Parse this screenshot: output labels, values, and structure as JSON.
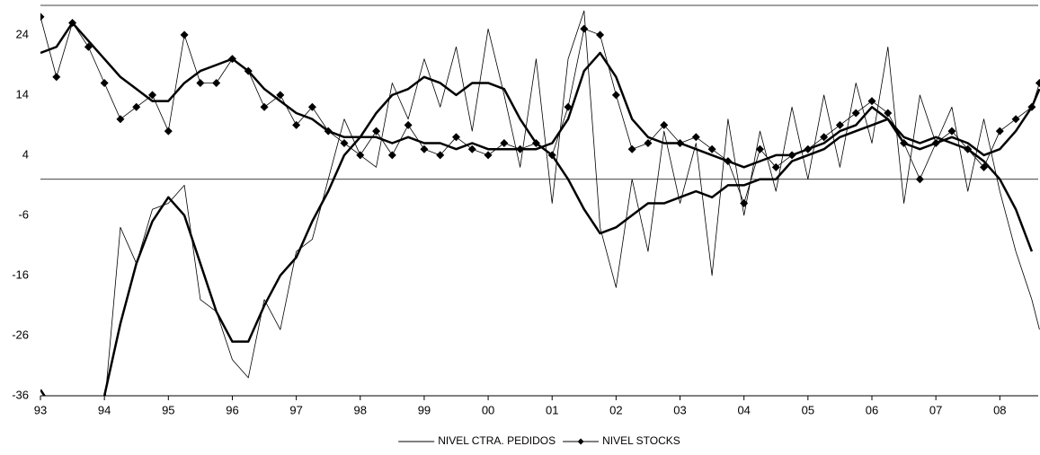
{
  "chart_data": {
    "type": "line",
    "x": [
      1993,
      1993.25,
      1993.5,
      1993.75,
      1994,
      1994.25,
      1994.5,
      1994.75,
      1995,
      1995.25,
      1995.5,
      1995.75,
      1996,
      1996.25,
      1996.5,
      1996.75,
      1997,
      1997.25,
      1997.5,
      1997.75,
      1998,
      1998.25,
      1998.5,
      1998.75,
      1999,
      1999.25,
      1999.5,
      1999.75,
      2000,
      2000.25,
      2000.5,
      2000.75,
      2001,
      2001.25,
      2001.5,
      2001.75,
      2002,
      2002.25,
      2002.5,
      2002.75,
      2003,
      2003.25,
      2003.5,
      2003.75,
      2004,
      2004.25,
      2004.5,
      2004.75,
      2005,
      2005.25,
      2005.5,
      2005.75,
      2006,
      2006.25,
      2006.5,
      2006.75,
      2007,
      2007.25,
      2007.5,
      2007.75,
      2008,
      2008.25,
      2008.5,
      2008.62
    ],
    "series": [
      {
        "name": "NIVEL CTRA. PEDIDOS",
        "color": "#000000",
        "width": 0.8,
        "values": [
          -40,
          -42,
          -42,
          -40,
          -38,
          -8,
          -14,
          -5,
          -4,
          -1,
          -20,
          -22,
          -30,
          -33,
          -20,
          -25,
          -12,
          -10,
          0,
          10,
          4,
          2,
          16,
          10,
          20,
          12,
          22,
          8,
          25,
          14,
          2,
          20,
          -4,
          20,
          28,
          -8,
          -18,
          0,
          -12,
          8,
          -4,
          6,
          -16,
          10,
          -6,
          8,
          -2,
          12,
          0,
          14,
          2,
          16,
          6,
          22,
          -4,
          14,
          6,
          12,
          -2,
          10,
          -2,
          -12,
          -20,
          -25
        ]
      },
      {
        "name": "NIVEL STOCKS",
        "color": "#000000",
        "width": 0.8,
        "marker": "diamond",
        "values": [
          27,
          17,
          26,
          22,
          16,
          10,
          12,
          14,
          8,
          24,
          16,
          16,
          20,
          18,
          12,
          14,
          9,
          12,
          8,
          6,
          4,
          8,
          4,
          9,
          5,
          4,
          7,
          5,
          4,
          6,
          5,
          6,
          4,
          12,
          25,
          24,
          14,
          5,
          6,
          9,
          6,
          7,
          5,
          3,
          -4,
          5,
          2,
          4,
          5,
          7,
          9,
          11,
          13,
          11,
          6,
          0,
          6,
          8,
          5,
          2,
          8,
          10,
          12,
          16
        ]
      },
      {
        "color": "#000000",
        "width": 2.5,
        "values": [
          -35,
          -39,
          -42,
          -40,
          -36,
          -24,
          -14,
          -7,
          -3,
          -6,
          -14,
          -22,
          -27,
          -27,
          -21,
          -16,
          -13,
          -7,
          -2,
          4,
          7,
          11,
          14,
          15,
          17,
          16,
          14,
          16,
          16,
          15,
          10,
          6,
          4,
          0,
          -5,
          -9,
          -8,
          -6,
          -4,
          -4,
          -3,
          -2,
          -3,
          -1,
          -1,
          0,
          0,
          3,
          4,
          5,
          7,
          8,
          9,
          10,
          7,
          6,
          7,
          6,
          5,
          3,
          0,
          -5,
          -12,
          null
        ]
      },
      {
        "color": "#000000",
        "width": 2.5,
        "values": [
          21,
          22,
          26,
          23,
          20,
          17,
          15,
          13,
          13,
          16,
          18,
          19,
          20,
          18,
          15,
          13,
          11,
          10,
          8,
          7,
          7,
          7,
          6,
          7,
          6,
          6,
          5,
          6,
          5,
          5,
          5,
          5,
          6,
          10,
          18,
          21,
          17,
          10,
          7,
          6,
          6,
          5,
          4,
          3,
          2,
          3,
          4,
          4,
          5,
          6,
          8,
          9,
          12,
          10,
          6,
          5,
          6,
          7,
          6,
          4,
          5,
          8,
          12,
          15
        ]
      }
    ],
    "xlim": [
      1993,
      2008.6
    ],
    "xticks": [
      {
        "value": 1993,
        "label": "93"
      },
      {
        "value": 1994,
        "label": "94"
      },
      {
        "value": 1995,
        "label": "95"
      },
      {
        "value": 1996,
        "label": "96"
      },
      {
        "value": 1997,
        "label": "97"
      },
      {
        "value": 1998,
        "label": "98"
      },
      {
        "value": 1999,
        "label": "99"
      },
      {
        "value": 2000,
        "label": "00"
      },
      {
        "value": 2001,
        "label": "01"
      },
      {
        "value": 2002,
        "label": "02"
      },
      {
        "value": 2003,
        "label": "03"
      },
      {
        "value": 2004,
        "label": "04"
      },
      {
        "value": 2005,
        "label": "05"
      },
      {
        "value": 2006,
        "label": "06"
      },
      {
        "value": 2007,
        "label": "07"
      },
      {
        "value": 2008,
        "label": "08"
      }
    ],
    "ylim": [
      -36,
      29.5
    ],
    "yticks": [
      -36,
      -26,
      -16,
      -6,
      4,
      14,
      24
    ],
    "zero_line": true,
    "legend": "bottom"
  }
}
